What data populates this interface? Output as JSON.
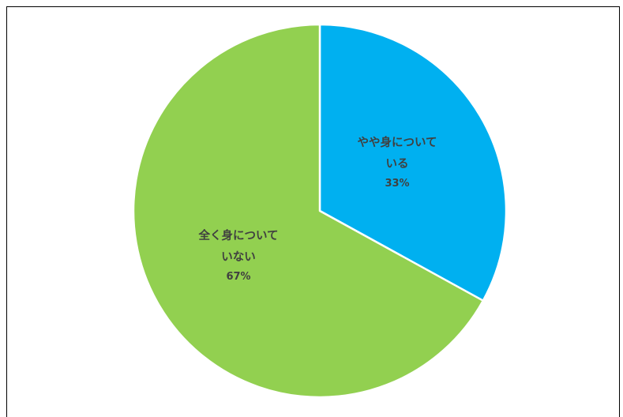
{
  "chart_data": {
    "type": "pie",
    "slices": [
      {
        "label_line1": "やや身について",
        "label_line2": "いる",
        "label": "やや身についている",
        "value": 33,
        "value_label": "33%",
        "color": "#00B0F0"
      },
      {
        "label_line1": "全く身について",
        "label_line2": "いない",
        "label": "全く身についていない",
        "value": 67,
        "value_label": "67%",
        "color": "#92D050"
      }
    ]
  }
}
